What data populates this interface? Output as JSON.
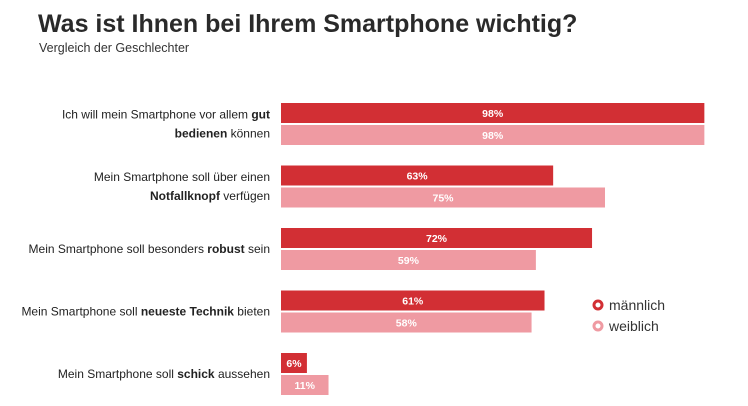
{
  "chart_data": {
    "type": "bar",
    "orientation": "horizontal",
    "title": "Was ist Ihnen bei Ihrem Smartphone wichtig?",
    "subtitle": "Vergleich der Geschlechter",
    "categories": [
      [
        {
          "t": "Ich will mein Smartphone vor allem "
        },
        {
          "t": "gut",
          "b": true
        },
        {
          "br": true
        },
        {
          "t": "bedienen",
          "b": true
        },
        {
          "t": " können"
        }
      ],
      [
        {
          "t": "Mein Smartphone soll über einen"
        },
        {
          "br": true
        },
        {
          "t": "Notfallknopf",
          "b": true
        },
        {
          "t": " verfügen"
        }
      ],
      [
        {
          "t": "Mein Smartphone soll besonders "
        },
        {
          "t": "robust",
          "b": true
        },
        {
          "t": " sein"
        }
      ],
      [
        {
          "t": "Mein Smartphone soll "
        },
        {
          "t": "neueste Technik",
          "b": true
        },
        {
          "t": " bieten"
        }
      ],
      [
        {
          "t": "Mein Smartphone soll "
        },
        {
          "t": "schick",
          "b": true
        },
        {
          "t": " aussehen"
        }
      ]
    ],
    "series": [
      {
        "name": "männlich",
        "color": "#d22f34",
        "values": [
          98,
          63,
          72,
          61,
          6
        ],
        "labels": [
          "98%",
          "63%",
          "72%",
          "61%",
          "6%"
        ]
      },
      {
        "name": "weiblich",
        "color": "#ef9aa2",
        "values": [
          98,
          75,
          59,
          58,
          11
        ],
        "labels": [
          "98%",
          "75%",
          "59%",
          "58%",
          "11%"
        ]
      }
    ],
    "xlim": [
      0,
      100
    ],
    "legend_position": "right"
  }
}
